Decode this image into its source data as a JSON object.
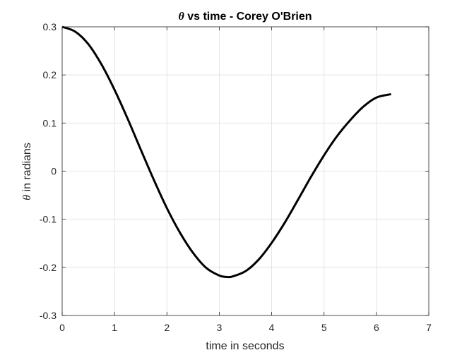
{
  "chart_data": {
    "type": "line",
    "title_symbol": "θ",
    "title": " vs time - Corey O'Brien",
    "xlabel": "time in seconds",
    "ylabel_symbol": "θ",
    "ylabel": " in radians",
    "xlim": [
      0,
      7
    ],
    "ylim": [
      -0.3,
      0.3
    ],
    "xticks": [
      0,
      1,
      2,
      3,
      4,
      5,
      6,
      7
    ],
    "xtick_labels": [
      "0",
      "1",
      "2",
      "3",
      "4",
      "5",
      "6",
      "7"
    ],
    "yticks": [
      -0.3,
      -0.2,
      -0.1,
      0,
      0.1,
      0.2,
      0.3
    ],
    "ytick_labels": [
      "-0.3",
      "-0.2",
      "-0.1",
      "0",
      "0.1",
      "0.2",
      "0.3"
    ],
    "grid": true,
    "series": [
      {
        "color": "#000000",
        "x": [
          0,
          0.25,
          0.5,
          0.75,
          1.0,
          1.25,
          1.5,
          1.75,
          2.0,
          2.25,
          2.5,
          2.75,
          3.0,
          3.15,
          3.25,
          3.5,
          3.75,
          4.0,
          4.25,
          4.5,
          4.75,
          5.0,
          5.25,
          5.5,
          5.75,
          6.0,
          6.28
        ],
        "y": [
          0.3,
          0.29,
          0.264,
          0.222,
          0.169,
          0.109,
          0.045,
          -0.018,
          -0.077,
          -0.128,
          -0.17,
          -0.201,
          -0.217,
          -0.22,
          -0.219,
          -0.208,
          -0.184,
          -0.149,
          -0.107,
          -0.06,
          -0.012,
          0.033,
          0.073,
          0.106,
          0.134,
          0.153,
          0.16
        ]
      }
    ]
  }
}
